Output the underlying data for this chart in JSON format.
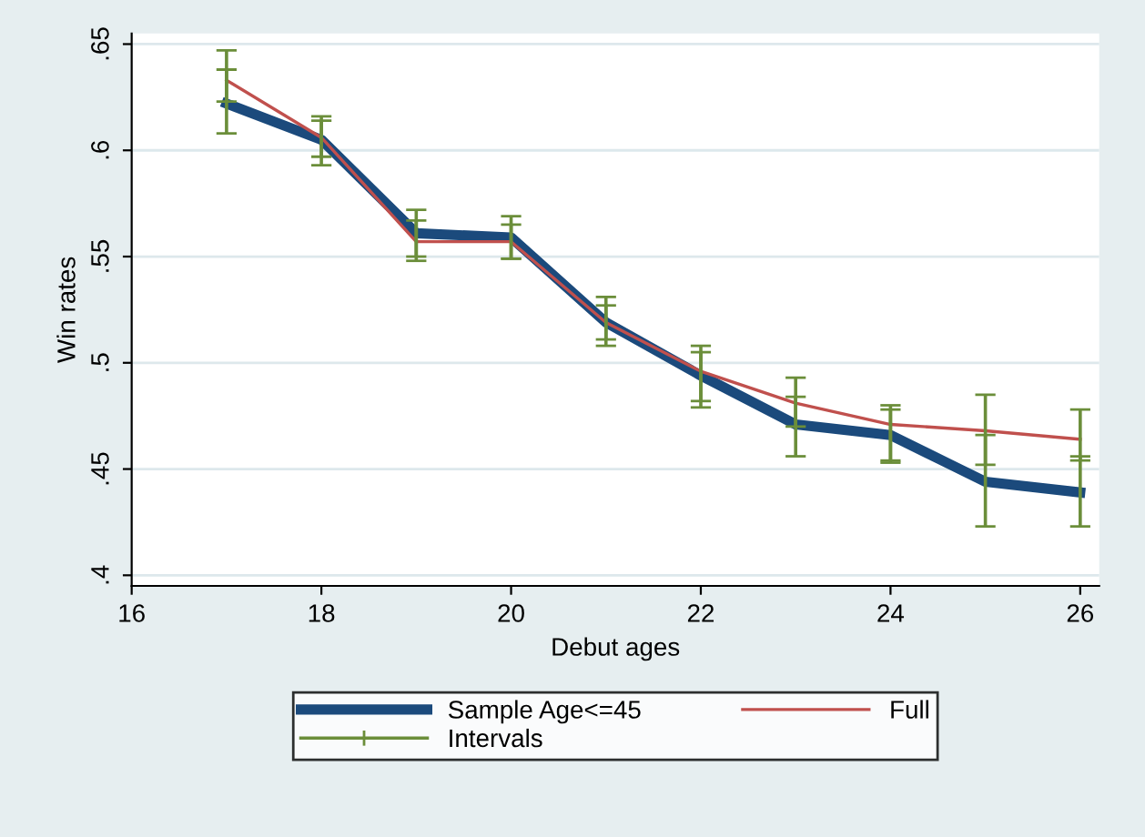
{
  "chart_data": {
    "type": "line",
    "xlabel": "Debut ages",
    "ylabel": "Win rates",
    "x": [
      17,
      18,
      19,
      20,
      21,
      22,
      23,
      24,
      25,
      26
    ],
    "series": [
      {
        "name": "Sample Age<=45",
        "color": "#1b4a7c",
        "values": [
          0.622,
          0.605,
          0.561,
          0.559,
          0.519,
          0.494,
          0.471,
          0.466,
          0.444,
          0.439
        ],
        "errors": [
          [
            0.608,
            0.638
          ],
          [
            0.593,
            0.616
          ],
          [
            0.55,
            0.572
          ],
          [
            0.549,
            0.569
          ],
          [
            0.508,
            0.531
          ],
          [
            0.479,
            0.508
          ],
          [
            0.456,
            0.484
          ],
          [
            0.453,
            0.478
          ],
          [
            0.423,
            0.466
          ],
          [
            0.423,
            0.456
          ]
        ]
      },
      {
        "name": "Full",
        "color": "#c0504d",
        "values": [
          0.633,
          0.606,
          0.557,
          0.557,
          0.519,
          0.496,
          0.481,
          0.471,
          0.468,
          0.464
        ],
        "errors": [
          [
            0.623,
            0.647
          ],
          [
            0.597,
            0.614
          ],
          [
            0.548,
            0.567
          ],
          [
            0.549,
            0.565
          ],
          [
            0.511,
            0.527
          ],
          [
            0.482,
            0.505
          ],
          [
            0.47,
            0.493
          ],
          [
            0.454,
            0.48
          ],
          [
            0.452,
            0.485
          ],
          [
            0.454,
            0.478
          ]
        ]
      },
      {
        "name": "Intervals",
        "type": "scatter",
        "marker": "none",
        "color": "#6b8e3a",
        "values": [
          null,
          null,
          null,
          null,
          null,
          null,
          null,
          null,
          null,
          null
        ]
      }
    ],
    "xlim": [
      16,
      26.2
    ],
    "xticks": [
      16,
      18,
      20,
      22,
      24,
      26
    ],
    "ylim": [
      0.395,
      0.655
    ],
    "yticks": [
      {
        "value": 0.4,
        "label": ".4"
      },
      {
        "value": 0.45,
        "label": ".45"
      },
      {
        "value": 0.5,
        "label": ".5"
      },
      {
        "value": 0.55,
        "label": ".55"
      },
      {
        "value": 0.6,
        "label": ".6"
      },
      {
        "value": 0.65,
        "label": ".65"
      }
    ],
    "grid": "y",
    "legend": "bottom"
  }
}
